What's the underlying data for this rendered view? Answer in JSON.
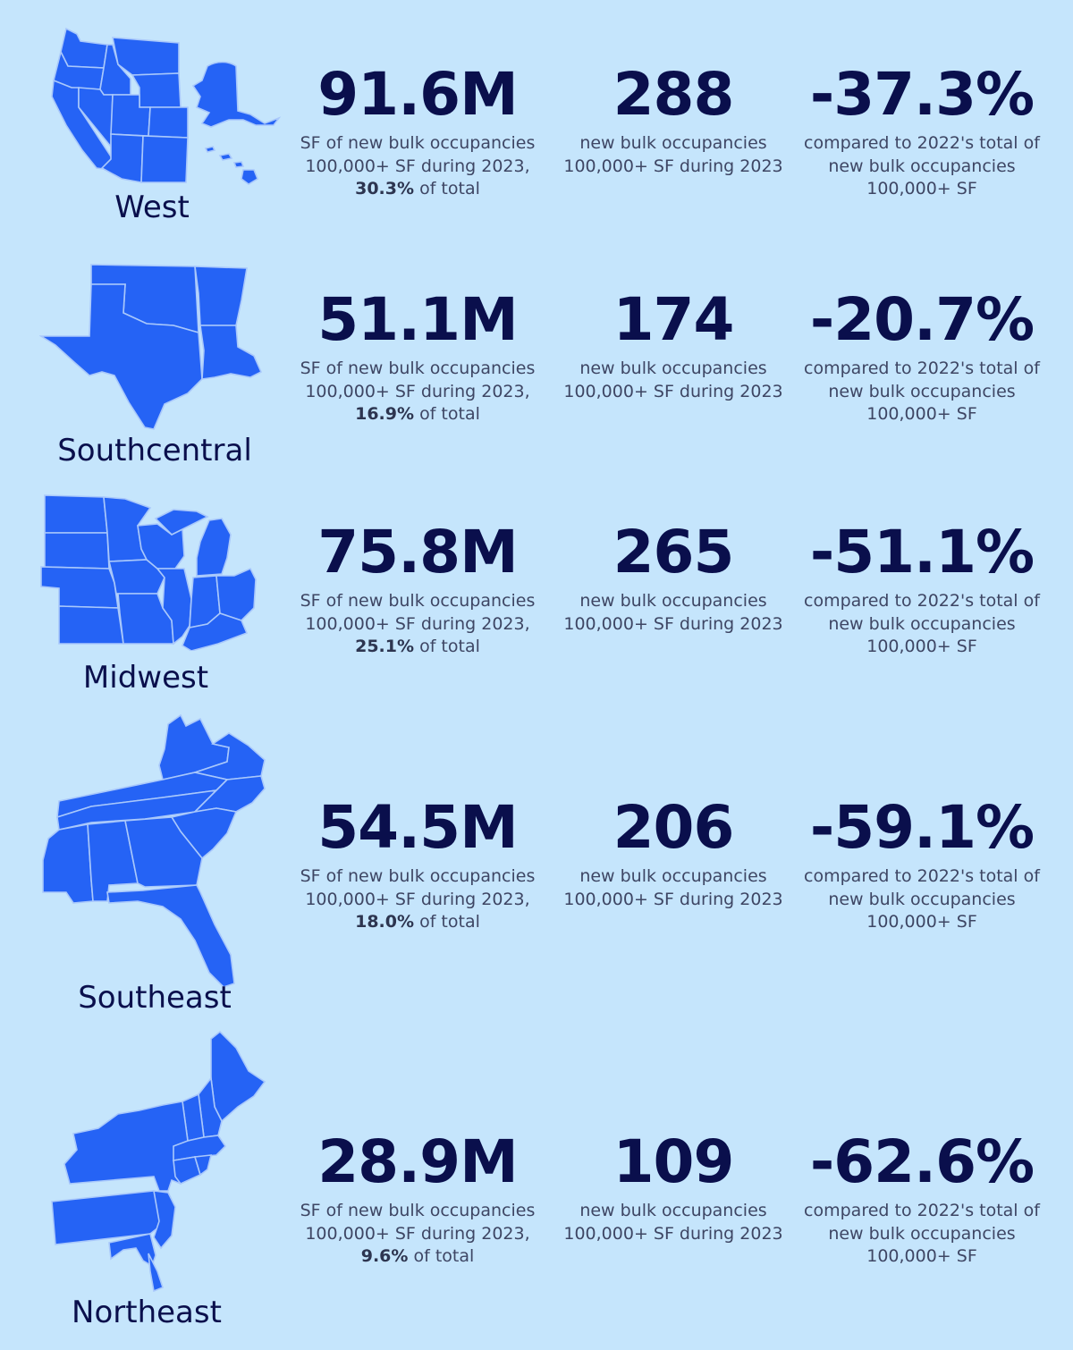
{
  "colors": {
    "background": "#c5e5fc",
    "map_fill": "#2563f5",
    "map_border": "#a9c8fb",
    "heading_text": "#0a0f4c",
    "body_text": "#3e4664"
  },
  "regions": [
    {
      "name": "West",
      "map_icon": "west-us-map-icon",
      "sf_value": "91.6M",
      "sf_desc_prefix": "SF of new bulk occupancies 100,000+ SF during 2023,",
      "sf_share": "30.3%",
      "sf_desc_suffix": "of total",
      "count_value": "288",
      "count_desc": "new bulk occupancies 100,000+ SF during 2023",
      "change_value": "-37.3%",
      "change_desc": "compared to 2022's total of new bulk occupancies 100,000+ SF"
    },
    {
      "name": "Southcentral",
      "map_icon": "southcentral-us-map-icon",
      "sf_value": "51.1M",
      "sf_desc_prefix": "SF of new bulk occupancies 100,000+ SF during 2023,",
      "sf_share": "16.9%",
      "sf_desc_suffix": "of total",
      "count_value": "174",
      "count_desc": "new bulk occupancies 100,000+ SF during 2023",
      "change_value": "-20.7%",
      "change_desc": "compared to 2022's total of new bulk occupancies 100,000+ SF"
    },
    {
      "name": "Midwest",
      "map_icon": "midwest-us-map-icon",
      "sf_value": "75.8M",
      "sf_desc_prefix": "SF of new bulk occupancies 100,000+ SF during 2023,",
      "sf_share": "25.1%",
      "sf_desc_suffix": "of total",
      "count_value": "265",
      "count_desc": "new bulk occupancies 100,000+ SF during 2023",
      "change_value": "-51.1%",
      "change_desc": "compared to 2022's total of new bulk occupancies 100,000+ SF"
    },
    {
      "name": "Southeast",
      "map_icon": "southeast-us-map-icon",
      "sf_value": "54.5M",
      "sf_desc_prefix": "SF of new bulk occupancies 100,000+ SF during 2023,",
      "sf_share": "18.0%",
      "sf_desc_suffix": "of total",
      "count_value": "206",
      "count_desc": "new bulk occupancies 100,000+ SF during 2023",
      "change_value": "-59.1%",
      "change_desc": "compared to 2022's total of new bulk occupancies 100,000+ SF"
    },
    {
      "name": "Northeast",
      "map_icon": "northeast-us-map-icon",
      "sf_value": "28.9M",
      "sf_desc_prefix": "SF of new bulk occupancies 100,000+ SF during 2023,",
      "sf_share": "9.6%",
      "sf_desc_suffix": "of total",
      "count_value": "109",
      "count_desc": "new bulk occupancies 100,000+ SF during 2023",
      "change_value": "-62.6%",
      "change_desc": "compared to 2022's total of new bulk occupancies 100,000+ SF"
    }
  ]
}
